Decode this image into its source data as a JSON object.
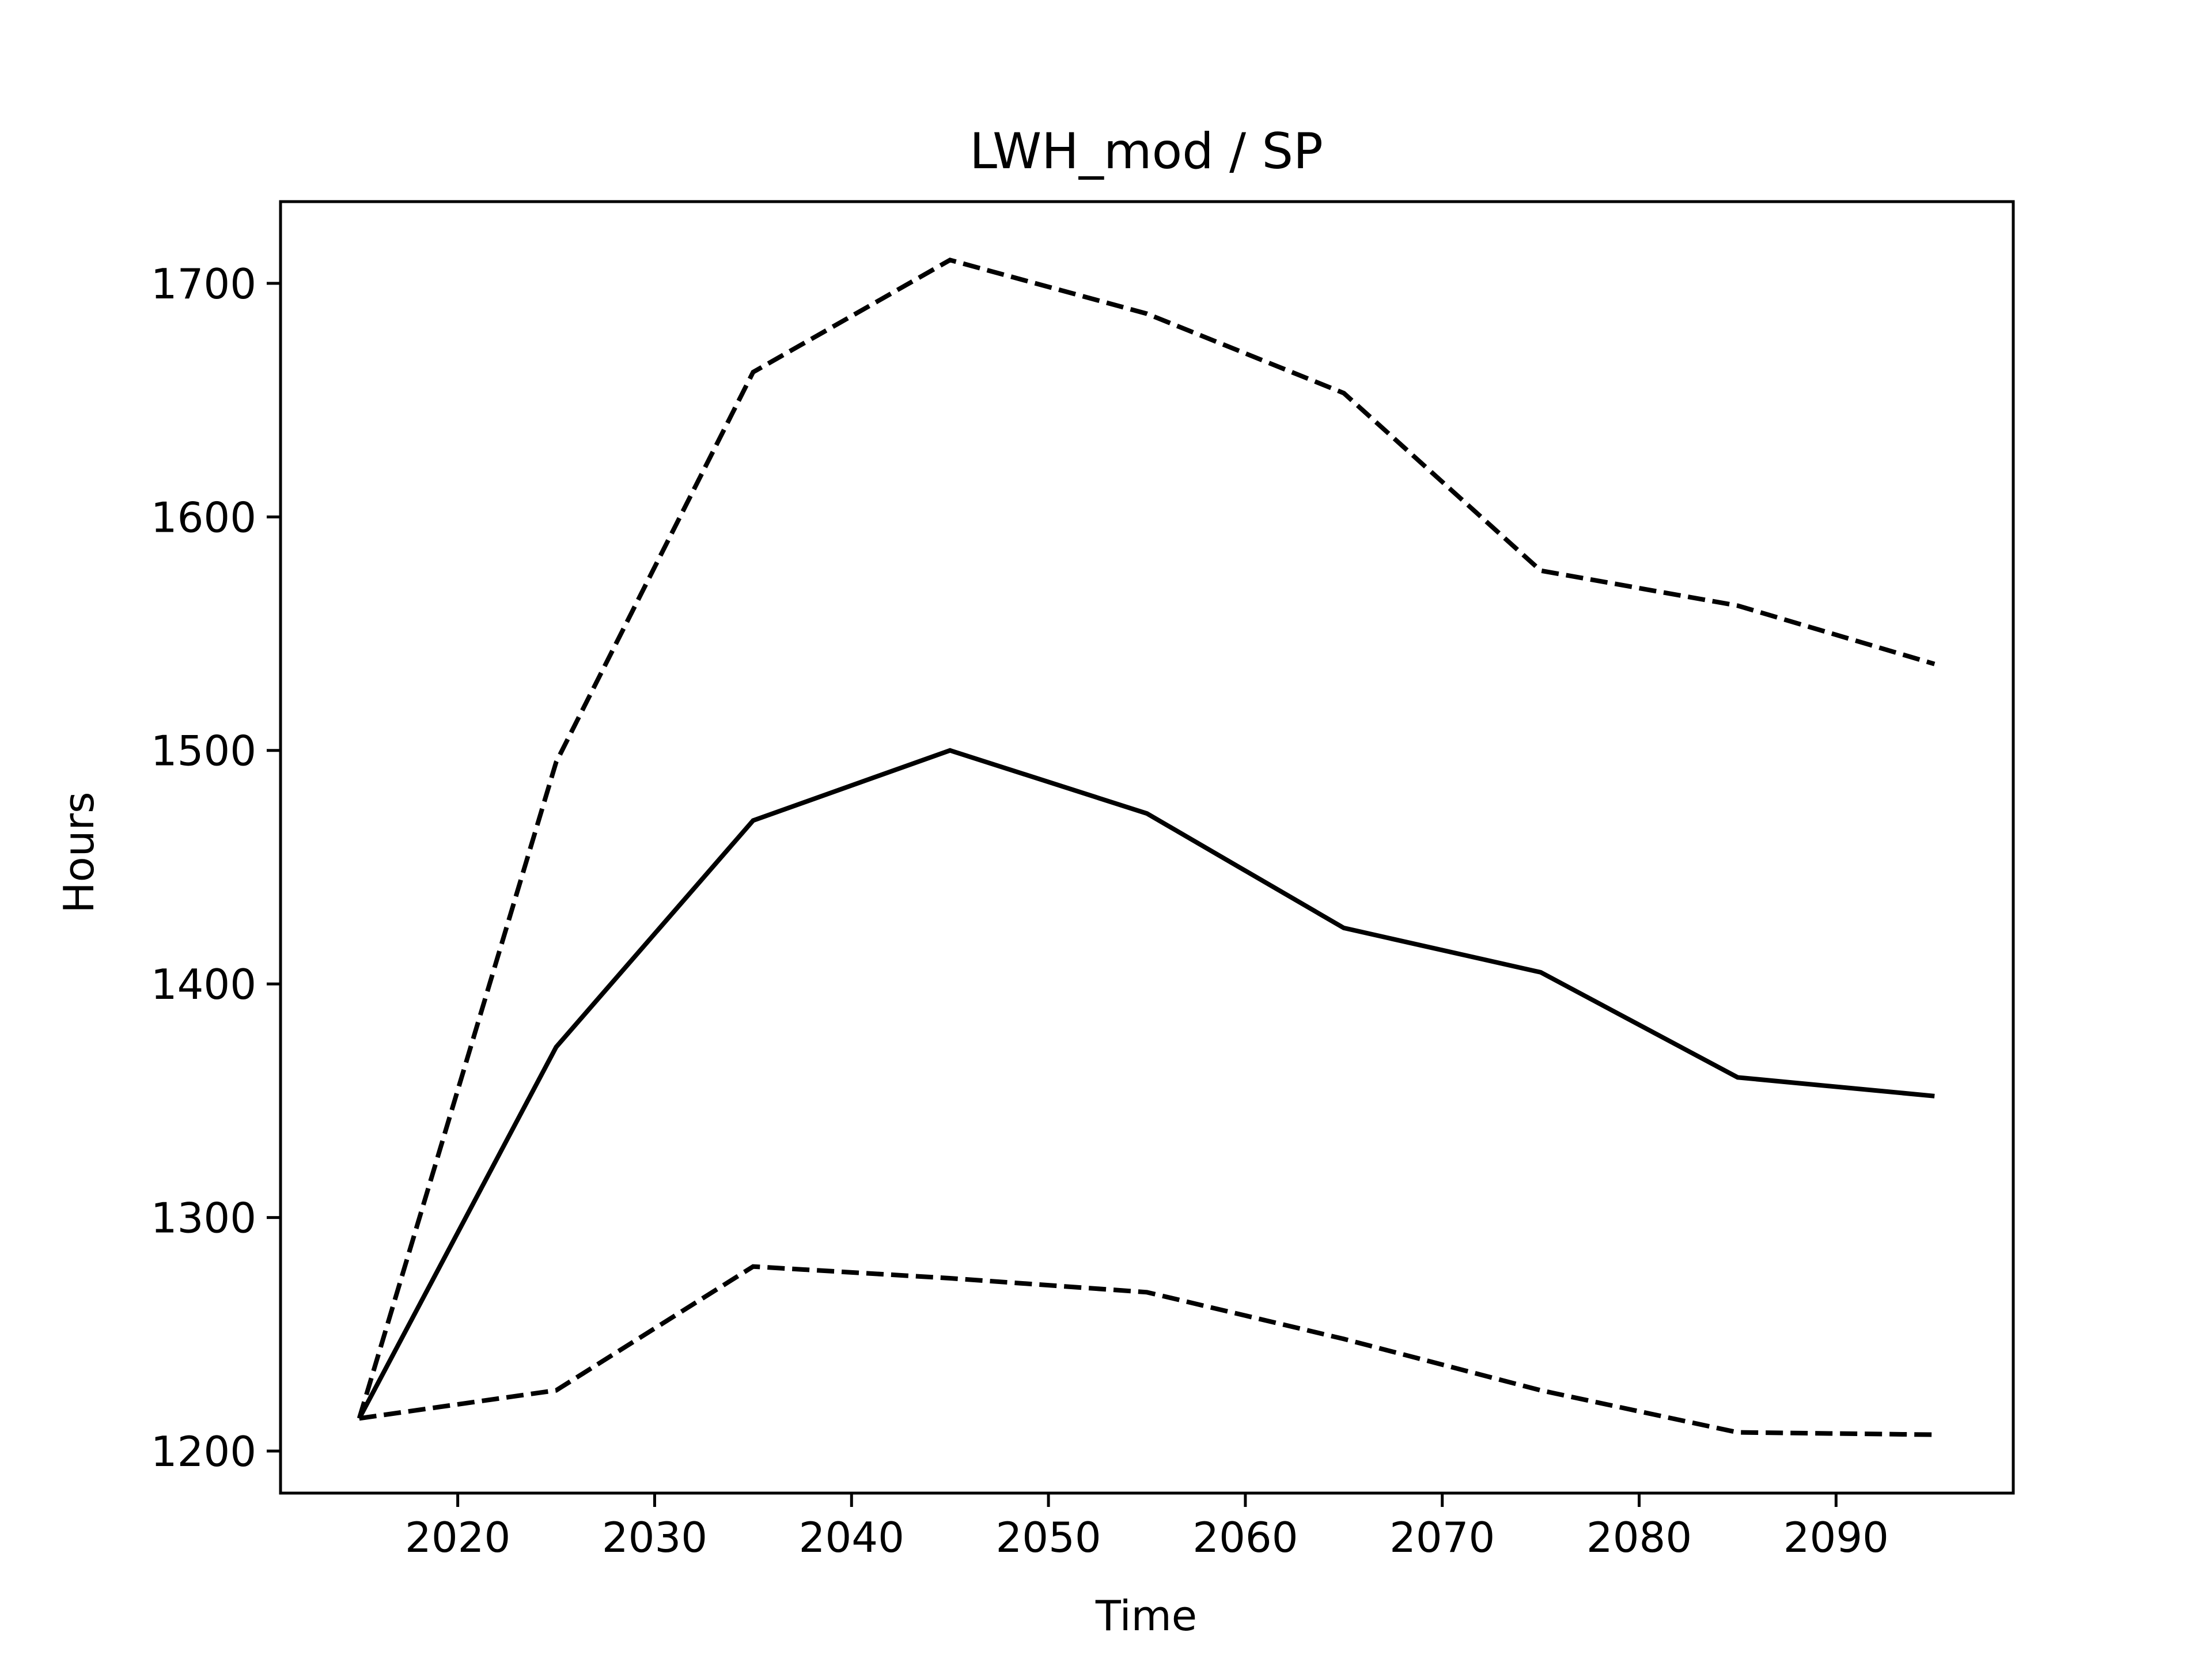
{
  "chart_data": {
    "type": "line",
    "title": "LWH_mod / SP",
    "xlabel": "Time",
    "ylabel": "Hours",
    "x": [
      2015,
      2025,
      2035,
      2045,
      2055,
      2065,
      2075,
      2085,
      2095
    ],
    "xlim": [
      2011,
      2099
    ],
    "ylim": [
      1182,
      1735
    ],
    "xticks": [
      2020,
      2030,
      2040,
      2050,
      2060,
      2070,
      2080,
      2090
    ],
    "yticks": [
      1200,
      1300,
      1400,
      1500,
      1600,
      1700
    ],
    "grid": false,
    "series": [
      {
        "style": "dashed",
        "color": "#000000",
        "values": [
          1214,
          1495,
          1662,
          1710,
          1687,
          1653,
          1577,
          1562,
          1537
        ]
      },
      {
        "style": "solid",
        "color": "#000000",
        "values": [
          1214,
          1373,
          1470,
          1500,
          1473,
          1424,
          1405,
          1360,
          1352
        ]
      },
      {
        "style": "dashed",
        "color": "#000000",
        "values": [
          1214,
          1226,
          1279,
          1274,
          1268,
          1248,
          1226,
          1208,
          1207
        ]
      }
    ]
  }
}
